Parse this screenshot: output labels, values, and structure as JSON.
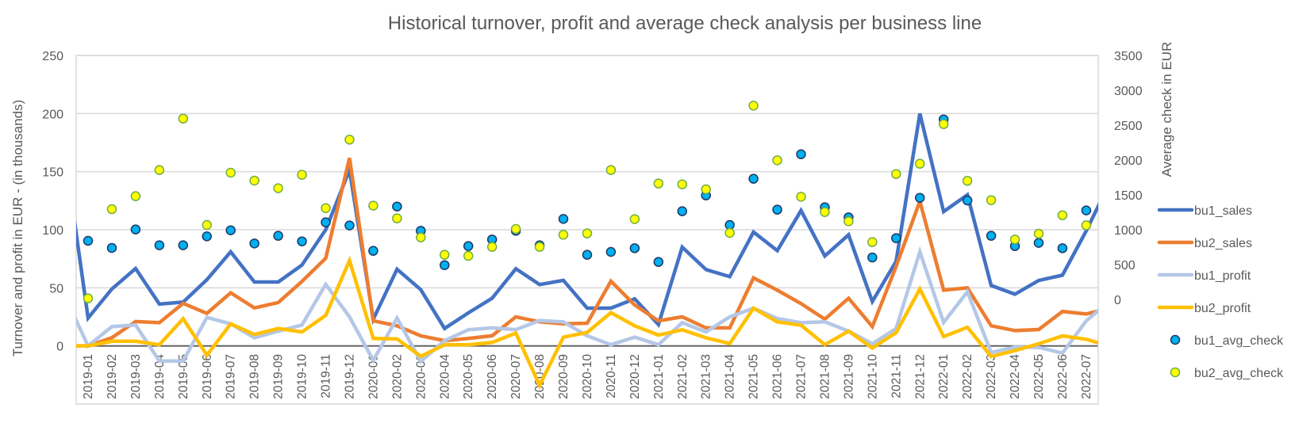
{
  "chart_data": {
    "type": "line",
    "title": "Historical turnover, profit and average check analysis per business line",
    "ylabel": "Turnover and profit in EUR - (in thousands)",
    "y2label": "Average check in EUR",
    "xlabel": "",
    "ylim": [
      -50,
      250
    ],
    "yticks": [
      0,
      50,
      100,
      150,
      200,
      250
    ],
    "y2lim": [
      -1500,
      3500
    ],
    "y2ticks": [
      0,
      500,
      1000,
      1500,
      2000,
      2500,
      3000,
      3500
    ],
    "grid": true,
    "legend_position": "right",
    "categories": [
      "2019-01",
      "2019-02",
      "2019-03",
      "2019-04",
      "2019-05",
      "2019-06",
      "2019-07",
      "2019-08",
      "2019-09",
      "2019-10",
      "2019-11",
      "2019-12",
      "2020-01",
      "2020-02",
      "2020-03",
      "2020-04",
      "2020-05",
      "2020-06",
      "2020-07",
      "2020-08",
      "2020-09",
      "2020-10",
      "2020-11",
      "2020-12",
      "2021-01",
      "2021-02",
      "2021-03",
      "2021-04",
      "2021-05",
      "2021-06",
      "2021-07",
      "2021-08",
      "2021-09",
      "2021-10",
      "2021-11",
      "2021-12",
      "2022-01",
      "2022-02",
      "2022-03",
      "2022-04",
      "2022-05",
      "2022-06",
      "2022-07"
    ],
    "series": [
      {
        "name": "bu1_sales",
        "kind": "line",
        "axis": "left",
        "color": "#4472C4",
        "prev": 170,
        "next": 141,
        "values": [
          24,
          49,
          66.6,
          36,
          37.7,
          57,
          81,
          55,
          55,
          69.6,
          100,
          151.4,
          23,
          66,
          48.4,
          15,
          28.4,
          41,
          66.4,
          52.8,
          56.4,
          32.5,
          32.5,
          40.5,
          18.4,
          85,
          65.7,
          59.6,
          98,
          82,
          116.5,
          77.4,
          95.6,
          38.2,
          72.8,
          200,
          115.6,
          130,
          52,
          44.5,
          56.3,
          60.9,
          99
        ]
      },
      {
        "name": "bu2_sales",
        "kind": "line",
        "axis": "left",
        "color": "#ED7D31",
        "prev": 0,
        "next": 32.5,
        "values": [
          0,
          7,
          21,
          20,
          36.6,
          28,
          45.7,
          32.7,
          37.3,
          55.5,
          75.5,
          161.7,
          21.6,
          17.3,
          8.7,
          4.5,
          6.4,
          8.7,
          25,
          20.7,
          19,
          19.5,
          55.7,
          35.2,
          21.6,
          25,
          15.5,
          15.5,
          58.5,
          48,
          36.4,
          23,
          41,
          16.6,
          68.4,
          124.6,
          48,
          50,
          17.3,
          13.2,
          14.1,
          29.6,
          27.5
        ]
      },
      {
        "name": "bu1_profit",
        "kind": "line",
        "axis": "left",
        "color": "#B4C7E7",
        "prev": 44,
        "next": 38.8,
        "values": [
          0,
          16.6,
          18,
          -13,
          -13,
          24.5,
          19,
          7,
          12.7,
          18,
          53,
          25,
          -12.5,
          24,
          -13.4,
          4.5,
          13.9,
          15.5,
          14,
          21.8,
          20.7,
          8.7,
          1,
          7.5,
          1,
          20,
          12,
          25,
          32.5,
          23.6,
          20,
          20.7,
          12.7,
          1.8,
          15,
          81,
          20.2,
          46.6,
          -5.7,
          -1,
          -1.3,
          -6.2,
          21.6
        ]
      },
      {
        "name": "bu2_profit",
        "kind": "line",
        "axis": "left",
        "color": "#FFC000",
        "prev": 0,
        "next": -0.3,
        "values": [
          0,
          4,
          4,
          1,
          23.4,
          -8,
          19,
          9.8,
          15,
          12,
          26.3,
          73.4,
          6.4,
          6,
          -9,
          1,
          1,
          3,
          11,
          -34,
          7.5,
          11.6,
          28.6,
          17.3,
          9.3,
          13.9,
          7,
          2,
          32.5,
          20.7,
          17.8,
          1.1,
          12.7,
          -1.8,
          11.4,
          49,
          8,
          16,
          -9.1,
          -4,
          1.8,
          8.6,
          5.7
        ]
      },
      {
        "name": "bu1_avg_check",
        "kind": "scatter",
        "axis": "right",
        "color": "#00B0F0",
        "edge_color": "#1F3864",
        "values": [
          841,
          739,
          1004,
          777,
          777,
          905,
          992,
          803,
          913,
          833,
          1106,
          1061,
          697,
          1333,
          985,
          492,
          765,
          860,
          985,
          777,
          1155,
          640,
          682,
          735,
          538,
          1265,
          1492,
          1068,
          1731,
          1288,
          2083,
          1322,
          1178,
          602,
          879,
          1458,
          2583,
          1420,
          913,
          765,
          811,
          735,
          1277
        ]
      },
      {
        "name": "bu2_avg_check",
        "kind": "scatter",
        "axis": "right",
        "color": "#FFFF00",
        "edge_color": "#70AD47",
        "values": [
          15,
          1295,
          1481,
          1856,
          2594,
          1068,
          1818,
          1705,
          1595,
          1788,
          1310,
          2292,
          1345,
          1163,
          890,
          640,
          625,
          754,
          1011,
          754,
          928,
          947,
          1856,
          1152,
          1663,
          1651,
          1580,
          955,
          2780,
          1996,
          1473,
          1254,
          1121,
          822,
          1799,
          1947,
          2515,
          1701,
          1424,
          860,
          943,
          1208,
          1064
        ]
      }
    ]
  }
}
